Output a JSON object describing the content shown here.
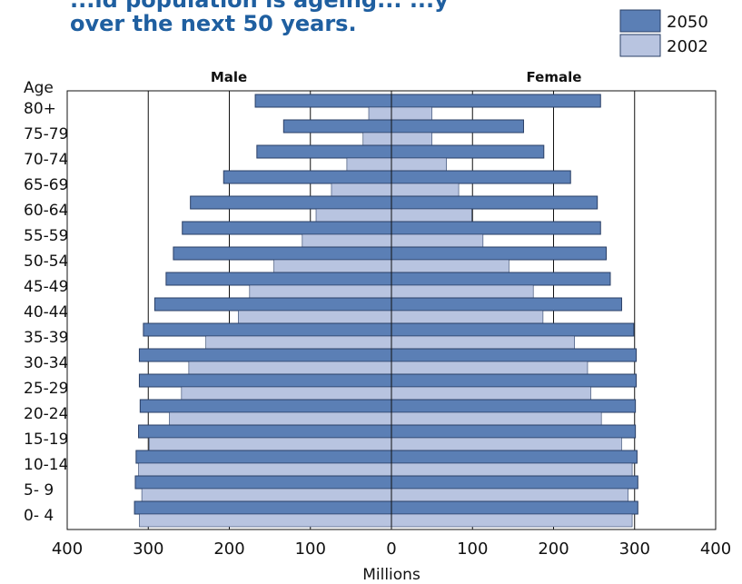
{
  "title": {
    "line1": "...ld population is ageing... ...y",
    "line2": "over the next 50 years."
  },
  "colors": {
    "bar_2050": "#5b7fb5",
    "bar_2002": "#b8c4e0",
    "bar_stroke": "#2a3f66",
    "title": "#1f5fa0"
  },
  "chart_data": {
    "type": "bar",
    "orientation": "horizontal",
    "subtype": "population-pyramid",
    "ylabel": "Age",
    "xlabel": "Millions",
    "left_label": "Male",
    "right_label": "Female",
    "xlim": [
      -400,
      400
    ],
    "x_tick_labels": [
      "400",
      "300",
      "200",
      "100",
      "0",
      "100",
      "200",
      "300",
      "400"
    ],
    "legend": [
      "2050",
      "2002"
    ],
    "legend_position": "top-right",
    "grid": true,
    "categories": [
      "80+",
      "75-79",
      "70-74",
      "65-69",
      "60-64",
      "55-59",
      "50-54",
      "45-49",
      "40-44",
      "35-39",
      "30-34",
      "25-29",
      "20-24",
      "15-19",
      "10-14",
      "5- 9",
      "0- 4"
    ],
    "series": [
      {
        "name": "2050",
        "male": [
          168,
          133,
          166,
          207,
          248,
          258,
          269,
          278,
          292,
          306,
          311,
          311,
          310,
          312,
          315,
          316,
          317
        ],
        "female": [
          258,
          163,
          188,
          221,
          254,
          258,
          265,
          270,
          284,
          299,
          302,
          302,
          301,
          301,
          303,
          304,
          304
        ]
      },
      {
        "name": "2002",
        "male": [
          28,
          35,
          55,
          74,
          93,
          110,
          145,
          175,
          189,
          229,
          250,
          259,
          274,
          299,
          312,
          308,
          311
        ],
        "female": [
          50,
          50,
          68,
          83,
          99,
          113,
          145,
          175,
          187,
          226,
          242,
          246,
          259,
          284,
          297,
          292,
          297
        ]
      }
    ]
  }
}
